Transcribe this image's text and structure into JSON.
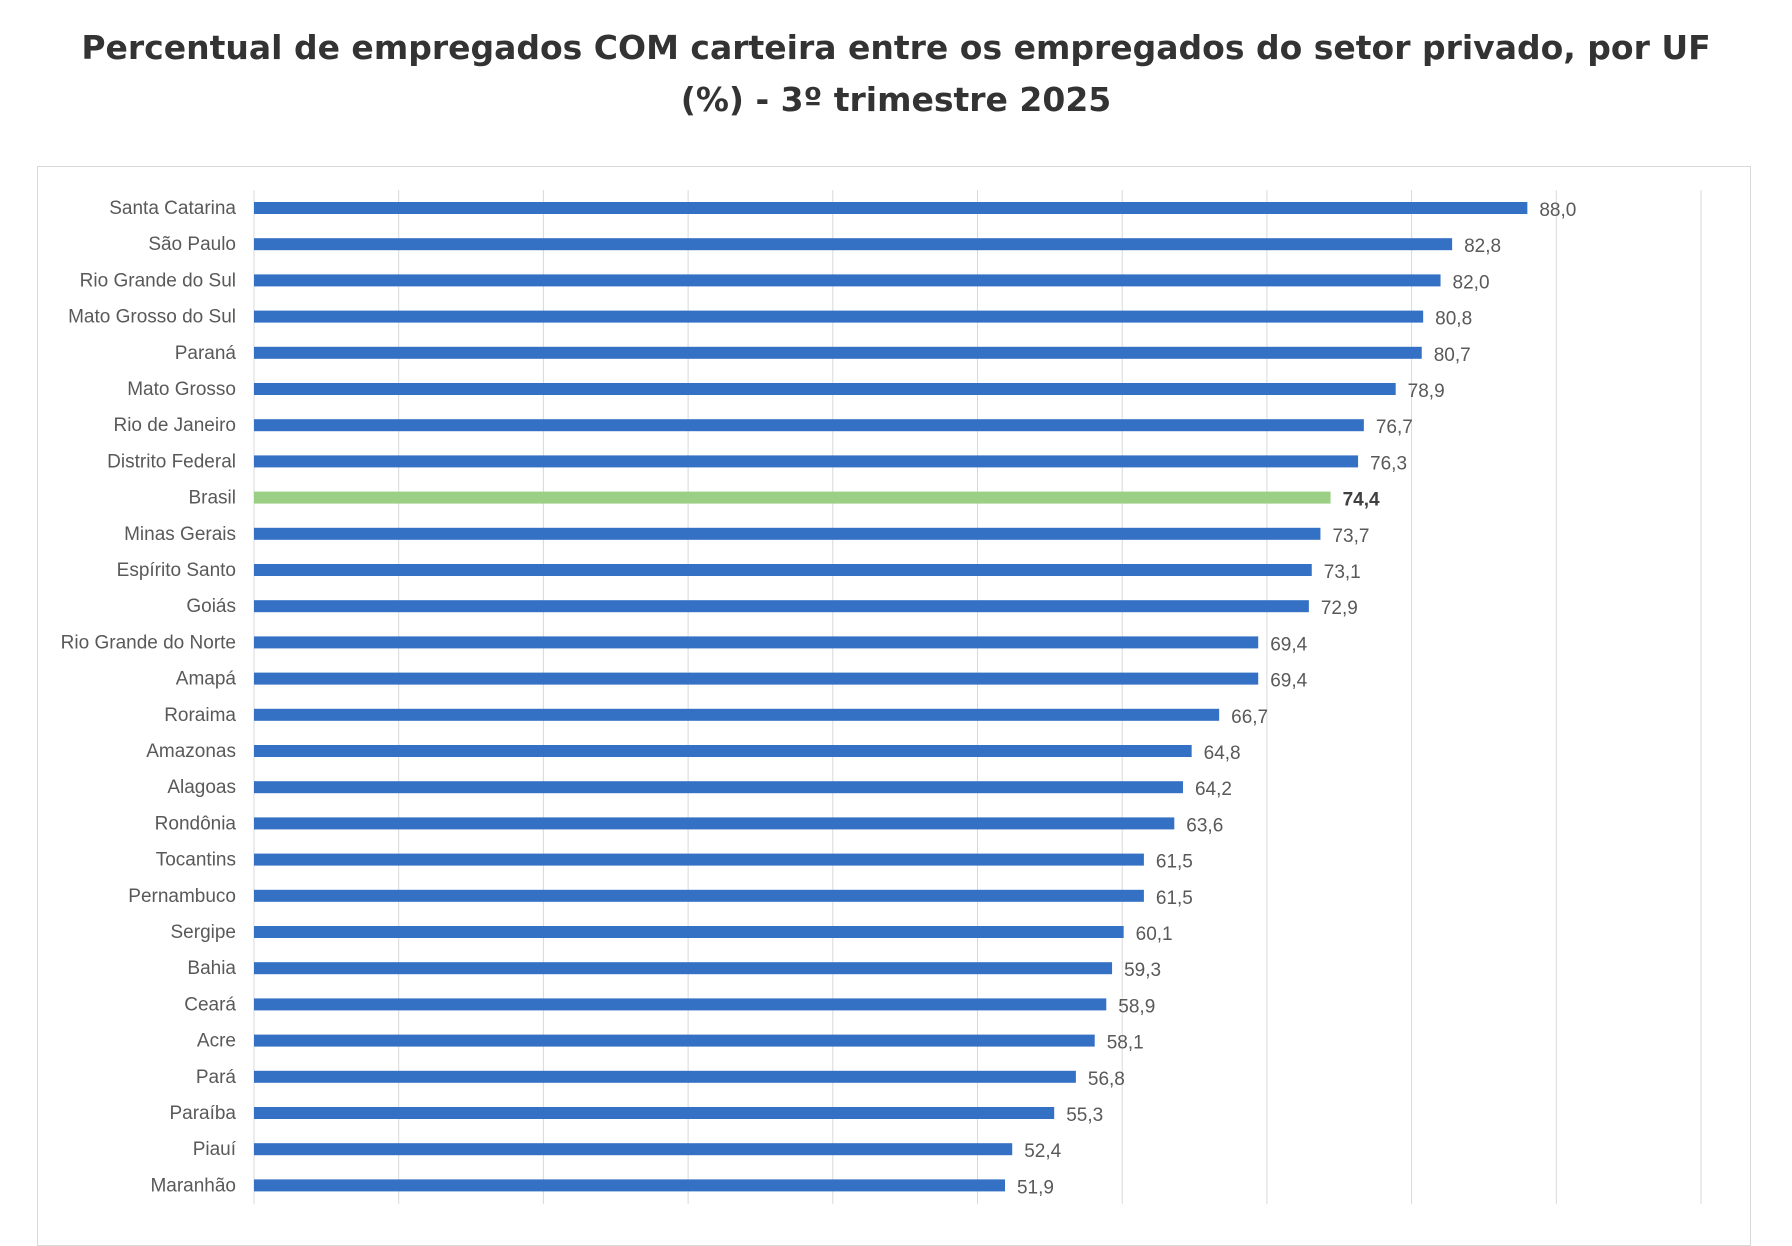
{
  "chart_data": {
    "type": "bar",
    "orientation": "horizontal",
    "title": "Percentual de empregados COM carteira entre os empregados do setor privado, por UF (%) - 3º trimestre 2025",
    "xlabel": "",
    "ylabel": "",
    "xlim": [
      0,
      100
    ],
    "grid": true,
    "grid_step": 10,
    "colors": {
      "default": "#3470C4",
      "highlight": "#9CCF86"
    },
    "highlight_category": "Brasil",
    "categories": [
      "Santa Catarina",
      "São Paulo",
      "Rio Grande do Sul",
      "Mato Grosso do Sul",
      "Paraná",
      "Mato Grosso",
      "Rio de Janeiro",
      "Distrito Federal",
      "Brasil",
      "Minas Gerais",
      "Espírito Santo",
      "Goiás",
      "Rio Grande do Norte",
      "Amapá",
      "Roraima",
      "Amazonas",
      "Alagoas",
      "Rondônia",
      "Tocantins",
      "Pernambuco",
      "Sergipe",
      "Bahia",
      "Ceará",
      "Acre",
      "Pará",
      "Paraíba",
      "Piauí",
      "Maranhão"
    ],
    "values": [
      88.0,
      82.8,
      82.0,
      80.8,
      80.7,
      78.9,
      76.7,
      76.3,
      74.4,
      73.7,
      73.1,
      72.9,
      69.4,
      69.4,
      66.7,
      64.8,
      64.2,
      63.6,
      61.5,
      61.5,
      60.1,
      59.3,
      58.9,
      58.1,
      56.8,
      55.3,
      52.4,
      51.9
    ],
    "value_labels": [
      "88,0",
      "82,8",
      "82,0",
      "80,8",
      "80,7",
      "78,9",
      "76,7",
      "76,3",
      "74,4",
      "73,7",
      "73,1",
      "72,9",
      "69,4",
      "69,4",
      "66,7",
      "64,8",
      "64,2",
      "63,6",
      "61,5",
      "61,5",
      "60,1",
      "59,3",
      "58,9",
      "58,1",
      "56,8",
      "55,3",
      "52,4",
      "51,9"
    ]
  }
}
